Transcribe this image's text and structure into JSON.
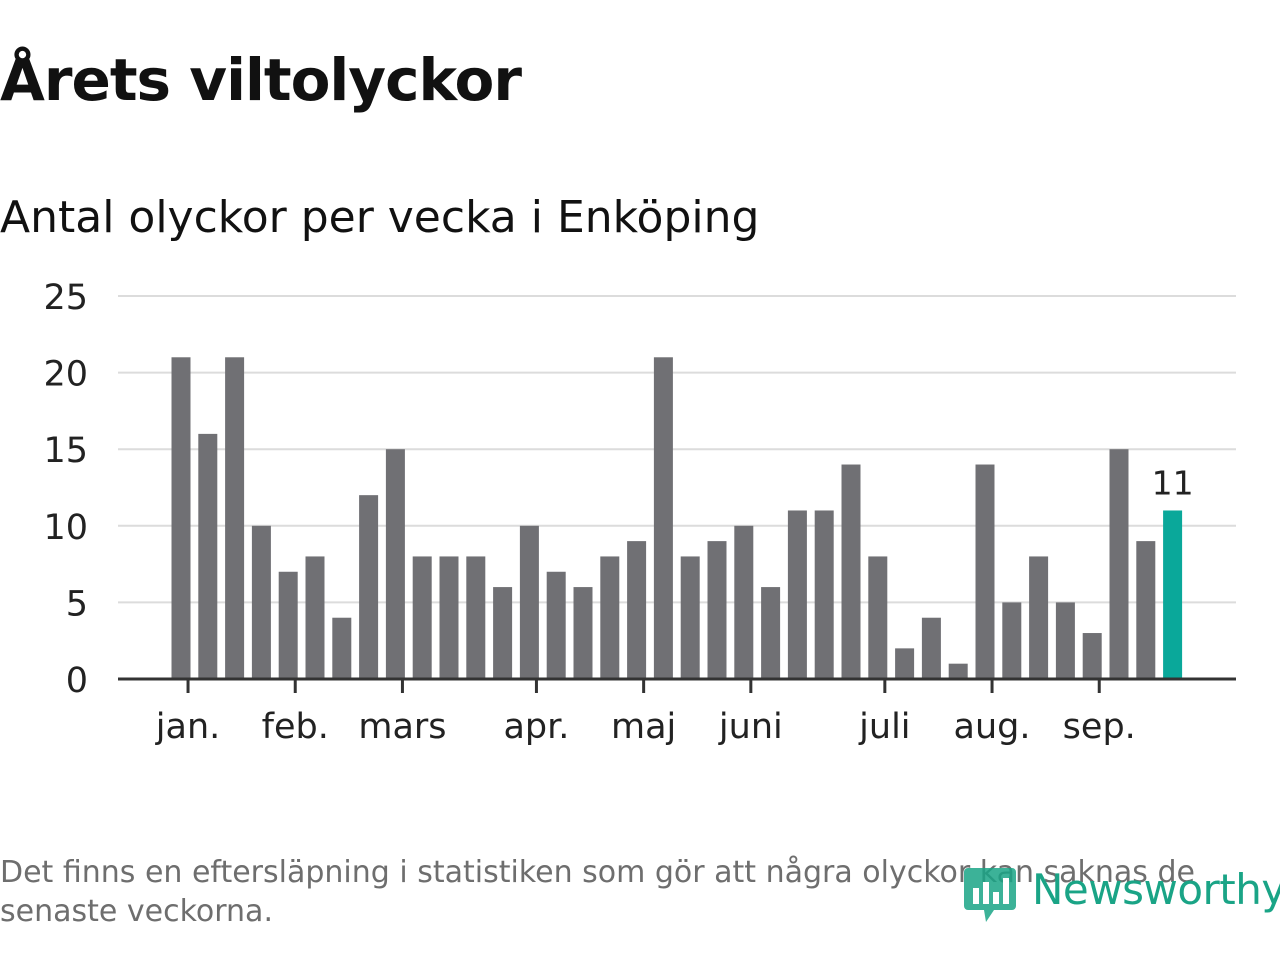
{
  "title": "Årets viltolyckor",
  "subtitle": "Antal olyckor per vecka i Enköping",
  "footnote": {
    "line1": "Det finns en eftersläpning i statistiken som gör att några olyckor kan saknas de",
    "line2": "senaste veckorna."
  },
  "brand": {
    "name": "Newsworthy",
    "icon": "newsworthy-logo-icon",
    "color": "#1aa486"
  },
  "colors": {
    "bar": "#707074",
    "highlight": "#0aa89a",
    "grid": "#dcdcdc",
    "axis": "#333333"
  },
  "chart_data": {
    "type": "bar",
    "title": "Årets viltolyckor",
    "subtitle": "Antal olyckor per vecka i Enköping",
    "xlabel": "",
    "ylabel": "",
    "ylim": [
      0,
      25
    ],
    "yticks": [
      0,
      5,
      10,
      15,
      20,
      25
    ],
    "grid": true,
    "legend": "none",
    "values": [
      21,
      16,
      21,
      10,
      7,
      8,
      4,
      12,
      15,
      8,
      8,
      8,
      6,
      10,
      7,
      6,
      8,
      9,
      21,
      8,
      9,
      10,
      6,
      11,
      11,
      14,
      8,
      2,
      4,
      1,
      14,
      5,
      8,
      5,
      3,
      15,
      9,
      11
    ],
    "highlight_index": 37,
    "highlight_label": "11",
    "month_labels": [
      {
        "label": "jan.",
        "bar_index": 0.3
      },
      {
        "label": "feb.",
        "bar_index": 4.3
      },
      {
        "label": "mars",
        "bar_index": 8.3
      },
      {
        "label": "apr.",
        "bar_index": 13.3
      },
      {
        "label": "maj",
        "bar_index": 17.3
      },
      {
        "label": "juni",
        "bar_index": 21.3
      },
      {
        "label": "juli",
        "bar_index": 26.3
      },
      {
        "label": "aug.",
        "bar_index": 30.3
      },
      {
        "label": "sep.",
        "bar_index": 34.3
      }
    ]
  }
}
